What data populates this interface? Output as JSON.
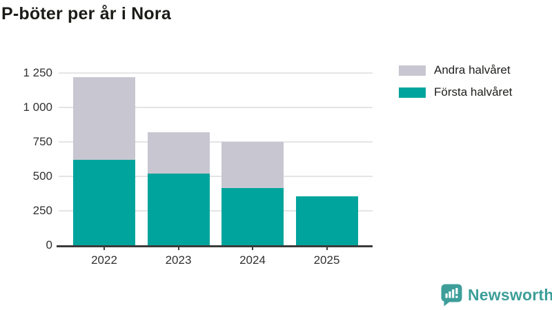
{
  "title": "P-böter per år i Nora",
  "chart_data": {
    "type": "bar",
    "stacked": true,
    "title": "P-böter per år i Nora",
    "categories": [
      "2022",
      "2023",
      "2024",
      "2025"
    ],
    "series": [
      {
        "name": "Första halvåret",
        "color": "#00a49c",
        "values": [
          620,
          520,
          415,
          355
        ]
      },
      {
        "name": "Andra halvåret",
        "color": "#c8c6d0",
        "values": [
          600,
          300,
          335,
          0
        ]
      }
    ],
    "xlabel": "",
    "ylabel": "",
    "ylim": [
      0,
      1250
    ],
    "yticks": [
      0,
      250,
      500,
      750,
      1000,
      1250
    ],
    "ytick_labels": [
      "0",
      "250",
      "500",
      "750",
      "1 000",
      "1 250"
    ],
    "grid": true,
    "legend_position": "top-right",
    "legend_order_top_to_bottom": [
      "Andra halvåret",
      "Första halvåret"
    ]
  },
  "legend": {
    "items": [
      {
        "label": "Andra halvåret",
        "color": "#c8c6d0"
      },
      {
        "label": "Första halvåret",
        "color": "#00a49c"
      }
    ]
  },
  "branding": {
    "logo_text": "Newsworthy",
    "logo_color": "#3d9e99"
  },
  "colors": {
    "first_half_bar": "#00a49c",
    "second_half_bar": "#c8c6d0",
    "gridline": "#e4e4e4",
    "axis": "#3a3a3a",
    "tick_text": "#303030",
    "title_text": "#1b1b18"
  }
}
